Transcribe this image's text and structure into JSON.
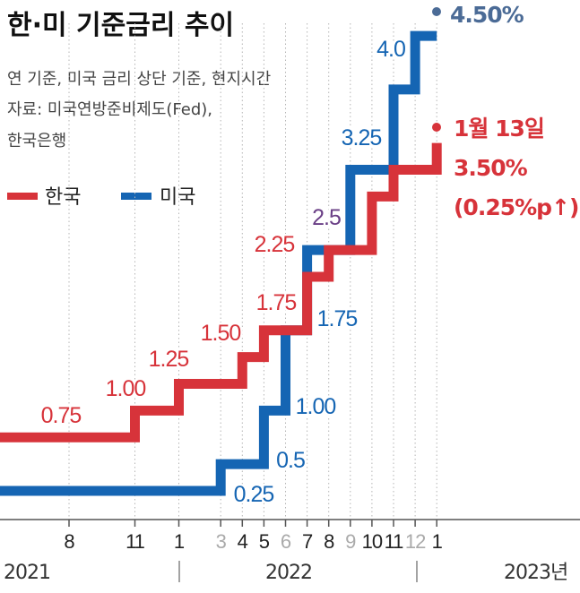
{
  "title": "한·미 기준금리 추이",
  "notes": [
    "연 기준, 미국 금리 상단 기준, 현지시간",
    "자료: 미국연방준비제도(Fed),",
    "한국은행"
  ],
  "colors": {
    "korea": "#d7333a",
    "us": "#1565b3",
    "us_final": "#4b6b96",
    "purple": "#6a3f86",
    "grey_tick": "#aaaaaa"
  },
  "legend": [
    {
      "name": "한국",
      "color": "#d7333a"
    },
    {
      "name": "미국",
      "color": "#1565b3"
    }
  ],
  "chart_data": {
    "type": "line",
    "step": true,
    "x_ticks": [
      "8",
      "11",
      "1",
      "3",
      "4",
      "5",
      "6",
      "7",
      "8",
      "9",
      "10",
      "11",
      "12",
      "1"
    ],
    "x_tick_grey": [
      false,
      false,
      false,
      true,
      false,
      false,
      true,
      false,
      false,
      true,
      false,
      false,
      true,
      false
    ],
    "year_labels": [
      "2021",
      "2022",
      "2023년"
    ],
    "series": [
      {
        "name": "한국",
        "color": "#d7333a",
        "points": [
          {
            "t": "2021-08",
            "value": 0.75,
            "label": "0.75"
          },
          {
            "t": "2021-11",
            "value": 1.0,
            "label": "1.00"
          },
          {
            "t": "2022-01",
            "value": 1.25,
            "label": "1.25"
          },
          {
            "t": "2022-04",
            "value": 1.5,
            "label": "1.50"
          },
          {
            "t": "2022-05",
            "value": 1.75,
            "label": "1.75"
          },
          {
            "t": "2022-07",
            "value": 2.25,
            "label": "2.25"
          },
          {
            "t": "2022-08",
            "value": 2.5,
            "label": ""
          },
          {
            "t": "2022-10",
            "value": 3.0,
            "label": ""
          },
          {
            "t": "2022-11",
            "value": 3.25,
            "label": ""
          },
          {
            "t": "2023-01",
            "value": 3.5,
            "label": ""
          }
        ]
      },
      {
        "name": "미국",
        "color": "#1565b3",
        "points": [
          {
            "t": "2021-08",
            "value": 0.25,
            "label": ""
          },
          {
            "t": "2022-03",
            "value": 0.5,
            "label": "0.25"
          },
          {
            "t": "2022-05",
            "value": 1.0,
            "label": "0.5"
          },
          {
            "t": "2022-06",
            "value": 1.75,
            "label": "1.00"
          },
          {
            "t": "2022-07",
            "value": 2.5,
            "label": "1.75"
          },
          {
            "t": "2022-09",
            "value": 3.25,
            "label": "2.5"
          },
          {
            "t": "2022-11",
            "value": 4.0,
            "label": "3.25"
          },
          {
            "t": "2022-12",
            "value": 4.5,
            "label": "4.0"
          }
        ]
      }
    ],
    "final_us_label": "4.50%",
    "final_korea_labels": [
      "1월 13일",
      "3.50%",
      "(0.25%p↑)"
    ]
  }
}
